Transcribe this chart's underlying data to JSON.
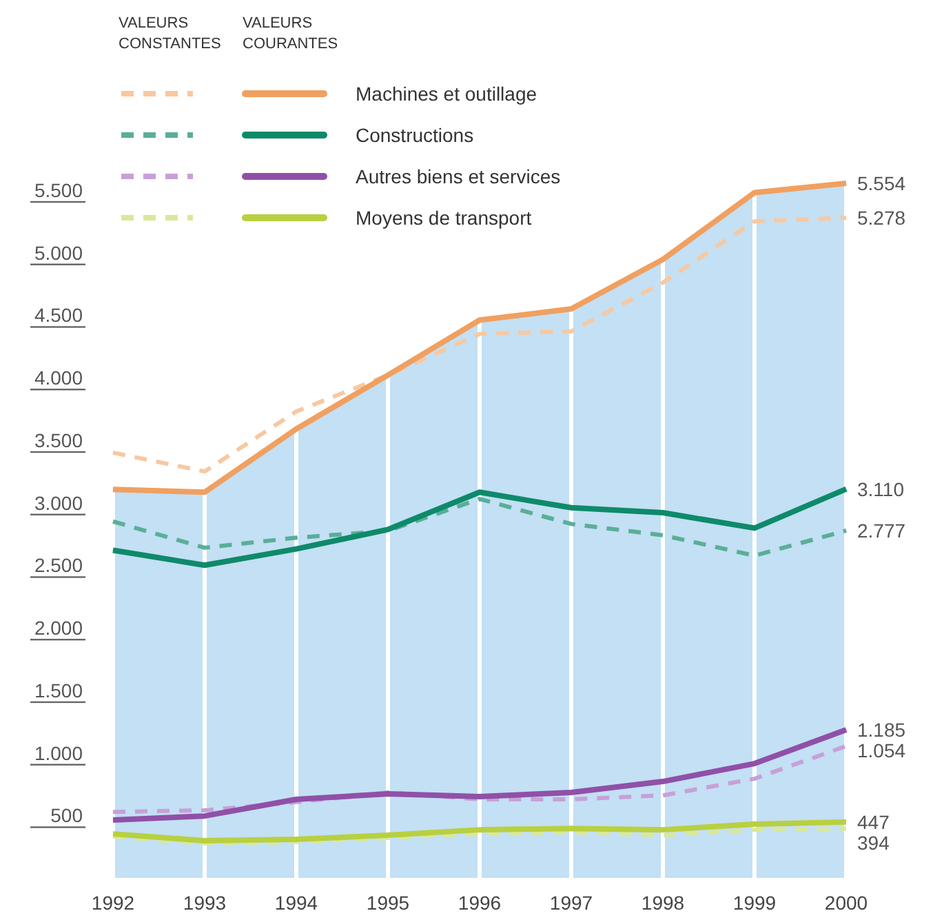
{
  "chart_data": {
    "type": "line",
    "categories": [
      "1992",
      "1993",
      "1994",
      "1995",
      "1996",
      "1997",
      "1998",
      "1999",
      "2000"
    ],
    "ylim": [
      0,
      5554
    ],
    "yticks": [
      500,
      {
        "value": 1000,
        "label": "1.000"
      },
      {
        "value": 1500,
        "label": "1.500"
      },
      {
        "value": 2000,
        "label": "2.000"
      },
      {
        "value": 2500,
        "label": "2.500"
      },
      {
        "value": 3000,
        "label": "3.000"
      },
      {
        "value": 3500,
        "label": "3.500"
      },
      {
        "value": 4000,
        "label": "4.000"
      },
      {
        "value": 4500,
        "label": "4.500"
      },
      {
        "value": 5000,
        "label": "5.000"
      },
      {
        "value": 5500,
        "label": "5.500"
      }
    ],
    "grid": "x",
    "legend": "top left",
    "annotations": [
      "VALEURS CONSTANTES",
      "VALEURS COURANTES"
    ],
    "series": [
      {
        "type": "area",
        "color": "#c3e0f4",
        "values": [
          3106,
          3084,
          3590,
          4020,
          4460,
          4550,
          4945,
          5480,
          5554
        ]
      },
      {
        "color": "#f8c8a0",
        "line_style": "dashed",
        "values": [
          3400,
          3250,
          3730,
          4020,
          4350,
          4370,
          4760,
          5250,
          5278
        ],
        "value_labels": [
          null,
          null,
          null,
          null,
          null,
          null,
          null,
          null,
          "5.278"
        ]
      },
      {
        "name": "Machines et outillage",
        "color": "#f0a060",
        "line_style": "solid",
        "values": [
          3106,
          3084,
          3590,
          4020,
          4460,
          4550,
          4945,
          5480,
          5554
        ],
        "value_labels": [
          null,
          null,
          null,
          null,
          null,
          null,
          null,
          null,
          "5.554"
        ]
      },
      {
        "color": "#5aae98",
        "line_style": "dashed",
        "values": [
          2850,
          2640,
          2720,
          2775,
          3030,
          2830,
          2740,
          2577,
          2777
        ],
        "value_labels": [
          null,
          null,
          null,
          null,
          null,
          null,
          null,
          null,
          "2.777"
        ]
      },
      {
        "name": "Constructions",
        "color": "#0e8a6a",
        "line_style": "solid",
        "values": [
          2620,
          2500,
          2630,
          2786,
          3084,
          2960,
          2920,
          2797,
          3110
        ],
        "value_labels": [
          null,
          null,
          null,
          null,
          null,
          null,
          null,
          null,
          "3.110"
        ]
      },
      {
        "color": "#c8a0d8",
        "line_style": "dashed",
        "values": [
          528,
          540,
          606,
          683,
          628,
          628,
          660,
          793,
          1054
        ],
        "value_labels": [
          null,
          null,
          null,
          null,
          null,
          null,
          null,
          null,
          "1.054"
        ]
      },
      {
        "name": "Autres biens et services",
        "color": "#9050a8",
        "line_style": "solid",
        "values": [
          463,
          495,
          628,
          672,
          650,
          683,
          771,
          914,
          1185
        ],
        "value_labels": [
          null,
          null,
          null,
          null,
          null,
          null,
          null,
          null,
          "1.185"
        ]
      },
      {
        "color": "#dae89a",
        "line_style": "dashed",
        "values": [
          330,
          275,
          286,
          319,
          352,
          363,
          341,
          385,
          394
        ],
        "value_labels": [
          null,
          null,
          null,
          null,
          null,
          null,
          null,
          null,
          "394"
        ]
      },
      {
        "name": "Moyens de transport",
        "color": "#b8d040",
        "line_style": "solid",
        "values": [
          352,
          297,
          308,
          341,
          385,
          396,
          385,
          430,
          447
        ],
        "value_labels": [
          null,
          null,
          null,
          null,
          null,
          null,
          null,
          null,
          "447"
        ]
      }
    ]
  }
}
